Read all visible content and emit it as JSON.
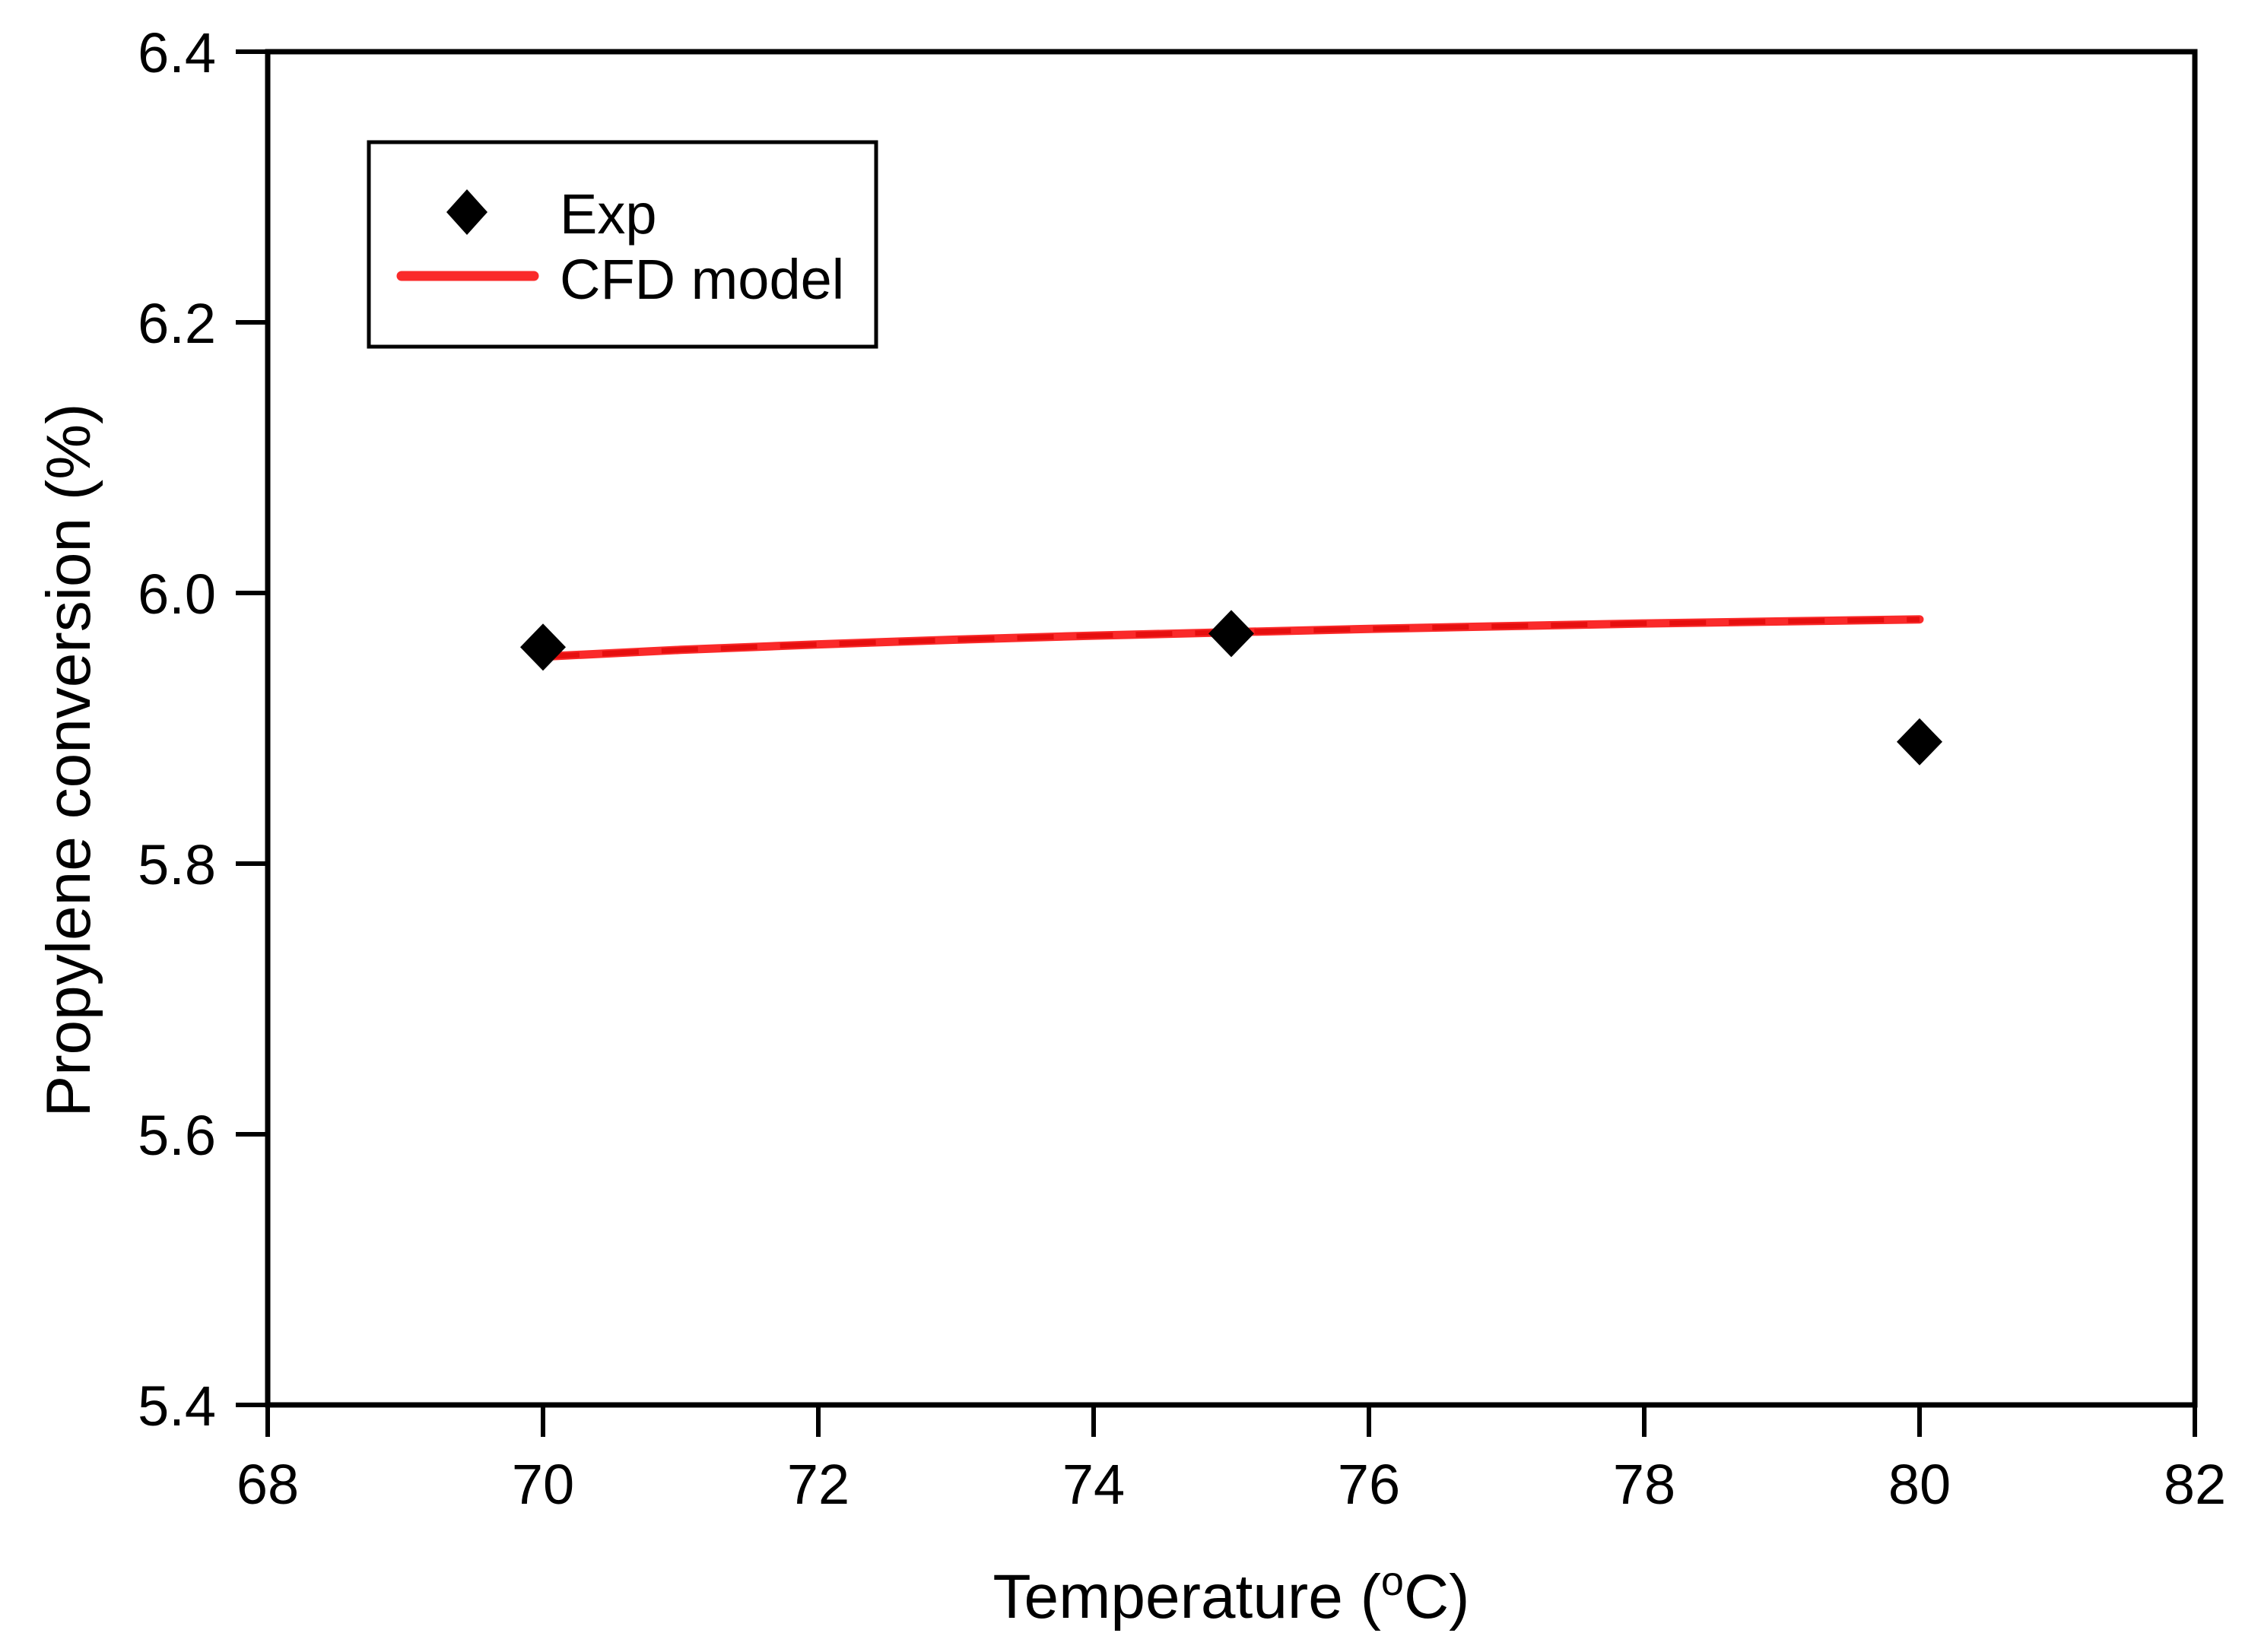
{
  "chart_data": {
    "type": "scatter",
    "title": "",
    "xlabel": {
      "main": "Temperature (",
      "sup": "o",
      "end": "C)"
    },
    "ylabel": "Propylene conversion (%)",
    "xlim": [
      68,
      82
    ],
    "ylim": [
      5.4,
      6.4
    ],
    "xticks": [
      68,
      70,
      72,
      74,
      76,
      78,
      80,
      82
    ],
    "xtick_labels": [
      "68",
      "70",
      "72",
      "74",
      "76",
      "78",
      "80",
      "82"
    ],
    "yticks": [
      6.4,
      6.2,
      6.0,
      5.8,
      5.6,
      5.4
    ],
    "ytick_labels": [
      "6.4",
      "6.2",
      "6.0",
      "5.8",
      "5.6",
      "5.4"
    ],
    "grid": false,
    "legend_position": "upper-left-inside",
    "series": [
      {
        "name": "Exp",
        "type": "scatter",
        "marker": "diamond",
        "color": "#000000",
        "points": [
          [
            70,
            5.96
          ],
          [
            75,
            5.97
          ],
          [
            80,
            5.89
          ]
        ]
      },
      {
        "name": "CFD model",
        "type": "line",
        "color": "#fa2a2a",
        "core_color": "#e60f0f",
        "points": [
          [
            70,
            5.953
          ],
          [
            71,
            5.958
          ],
          [
            72,
            5.962
          ],
          [
            73,
            5.9655
          ],
          [
            74,
            5.9685
          ],
          [
            75,
            5.971
          ],
          [
            76,
            5.9735
          ],
          [
            77,
            5.9755
          ],
          [
            78,
            5.9775
          ],
          [
            79,
            5.979
          ],
          [
            80,
            5.9805
          ]
        ]
      }
    ],
    "colors": {
      "frame": "#000000",
      "text": "#000000",
      "background": "#ffffff"
    }
  }
}
